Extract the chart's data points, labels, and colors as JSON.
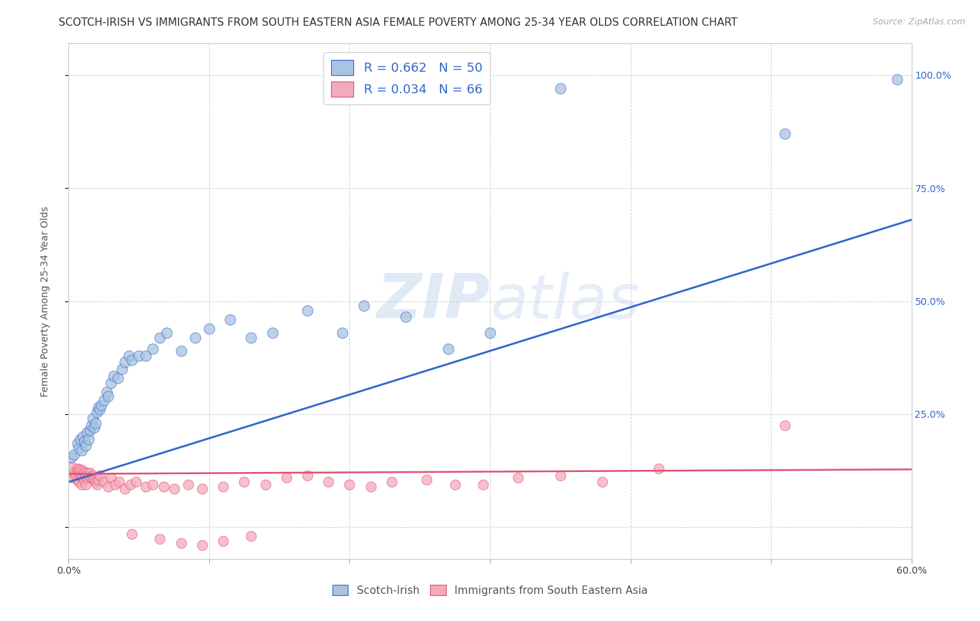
{
  "title": "SCOTCH-IRISH VS IMMIGRANTS FROM SOUTH EASTERN ASIA FEMALE POVERTY AMONG 25-34 YEAR OLDS CORRELATION CHART",
  "source": "Source: ZipAtlas.com",
  "ylabel": "Female Poverty Among 25-34 Year Olds",
  "watermark_zip": "ZIP",
  "watermark_atlas": "atlas",
  "legend1_R": "0.662",
  "legend1_N": "50",
  "legend2_R": "0.034",
  "legend2_N": "66",
  "legend1_label": "Scotch-Irish",
  "legend2_label": "Immigrants from South Eastern Asia",
  "blue_color": "#A8C4E0",
  "pink_color": "#F4AABB",
  "line_blue": "#3366CC",
  "line_pink": "#E05070",
  "right_ytick_labels": [
    "",
    "25.0%",
    "50.0%",
    "75.0%",
    "100.0%"
  ],
  "right_ytick_vals": [
    0.0,
    0.25,
    0.5,
    0.75,
    1.0
  ],
  "xlim": [
    0.0,
    0.6
  ],
  "ylim": [
    -0.07,
    1.07
  ],
  "blue_scatter_x": [
    0.002,
    0.004,
    0.006,
    0.007,
    0.008,
    0.009,
    0.01,
    0.011,
    0.012,
    0.013,
    0.014,
    0.015,
    0.016,
    0.017,
    0.018,
    0.019,
    0.02,
    0.021,
    0.022,
    0.023,
    0.025,
    0.027,
    0.028,
    0.03,
    0.032,
    0.035,
    0.038,
    0.04,
    0.043,
    0.045,
    0.05,
    0.055,
    0.06,
    0.065,
    0.07,
    0.08,
    0.09,
    0.1,
    0.115,
    0.13,
    0.145,
    0.17,
    0.195,
    0.21,
    0.24,
    0.27,
    0.3,
    0.35,
    0.51,
    0.59
  ],
  "blue_scatter_y": [
    0.155,
    0.16,
    0.185,
    0.175,
    0.195,
    0.17,
    0.2,
    0.19,
    0.18,
    0.21,
    0.195,
    0.215,
    0.225,
    0.24,
    0.22,
    0.23,
    0.255,
    0.265,
    0.26,
    0.27,
    0.28,
    0.3,
    0.29,
    0.32,
    0.335,
    0.33,
    0.35,
    0.365,
    0.38,
    0.37,
    0.38,
    0.38,
    0.395,
    0.42,
    0.43,
    0.39,
    0.42,
    0.44,
    0.46,
    0.42,
    0.43,
    0.48,
    0.43,
    0.49,
    0.465,
    0.395,
    0.43,
    0.97,
    0.87,
    0.99
  ],
  "pink_scatter_x": [
    0.002,
    0.003,
    0.004,
    0.005,
    0.006,
    0.006,
    0.007,
    0.007,
    0.008,
    0.008,
    0.009,
    0.009,
    0.01,
    0.01,
    0.011,
    0.011,
    0.012,
    0.012,
    0.013,
    0.013,
    0.014,
    0.015,
    0.016,
    0.017,
    0.018,
    0.019,
    0.02,
    0.021,
    0.022,
    0.025,
    0.028,
    0.03,
    0.033,
    0.036,
    0.04,
    0.044,
    0.048,
    0.055,
    0.06,
    0.068,
    0.075,
    0.085,
    0.095,
    0.11,
    0.125,
    0.14,
    0.155,
    0.17,
    0.185,
    0.2,
    0.215,
    0.23,
    0.255,
    0.275,
    0.295,
    0.32,
    0.35,
    0.38,
    0.42,
    0.51,
    0.045,
    0.065,
    0.08,
    0.095,
    0.11,
    0.13
  ],
  "pink_scatter_y": [
    0.135,
    0.11,
    0.12,
    0.115,
    0.13,
    0.105,
    0.125,
    0.1,
    0.118,
    0.128,
    0.115,
    0.095,
    0.125,
    0.11,
    0.12,
    0.105,
    0.115,
    0.095,
    0.12,
    0.11,
    0.115,
    0.12,
    0.11,
    0.115,
    0.105,
    0.1,
    0.095,
    0.105,
    0.115,
    0.1,
    0.09,
    0.11,
    0.095,
    0.1,
    0.085,
    0.095,
    0.1,
    0.09,
    0.095,
    0.09,
    0.085,
    0.095,
    0.085,
    0.09,
    0.1,
    0.095,
    0.11,
    0.115,
    0.1,
    0.095,
    0.09,
    0.1,
    0.105,
    0.095,
    0.095,
    0.11,
    0.115,
    0.1,
    0.13,
    0.225,
    -0.015,
    -0.025,
    -0.035,
    -0.04,
    -0.03,
    -0.02
  ],
  "blue_line_x": [
    0.0,
    0.6
  ],
  "blue_line_y": [
    0.1,
    0.68
  ],
  "pink_line_x": [
    0.0,
    0.6
  ],
  "pink_line_y": [
    0.118,
    0.128
  ],
  "grid_color": "#CCCCCC",
  "title_fontsize": 11,
  "axis_label_fontsize": 10,
  "tick_fontsize": 10
}
